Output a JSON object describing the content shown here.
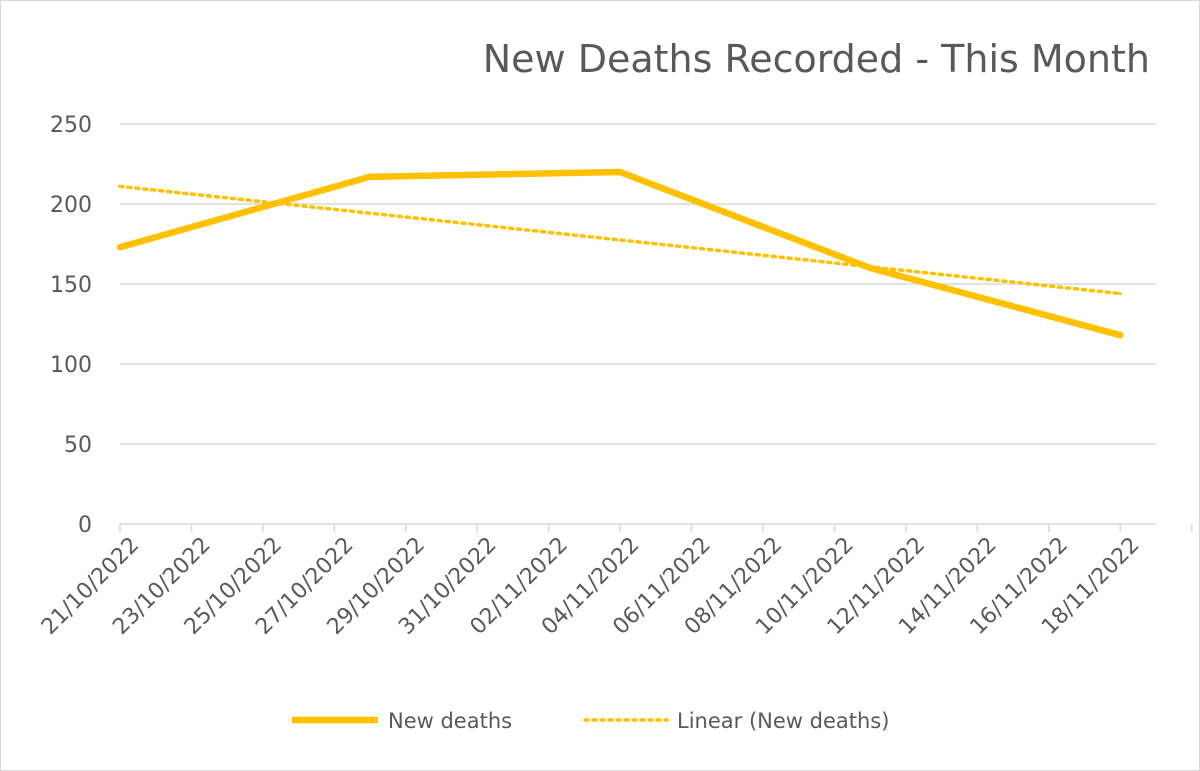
{
  "chart_data": {
    "type": "line",
    "title": "New Deaths Recorded - This Month",
    "xlabel": "",
    "ylabel": "",
    "x_tick_labels": [
      "21/10/2022",
      "23/10/2022",
      "25/10/2022",
      "27/10/2022",
      "29/10/2022",
      "31/10/2022",
      "02/11/2022",
      "04/11/2022",
      "06/11/2022",
      "08/11/2022",
      "10/11/2022",
      "12/11/2022",
      "14/11/2022",
      "16/11/2022",
      "18/11/2022"
    ],
    "y_ticks": [
      0,
      50,
      100,
      150,
      200,
      250
    ],
    "ylim": [
      0,
      250
    ],
    "xlim": [
      "21/10/2022",
      "19/11/2022"
    ],
    "grid": true,
    "legend_position": "bottom",
    "colors": {
      "series": "#FFC000",
      "axis": "#d9d9d9",
      "text": "#595959"
    },
    "series": [
      {
        "name": "New deaths",
        "style": "solid",
        "points": [
          {
            "x": "21/10/2022",
            "y": 173
          },
          {
            "x": "28/10/2022",
            "y": 217
          },
          {
            "x": "04/11/2022",
            "y": 220
          },
          {
            "x": "11/11/2022",
            "y": 160
          },
          {
            "x": "18/11/2022",
            "y": 118
          }
        ]
      },
      {
        "name": "Linear (New deaths)",
        "style": "dotted",
        "points": [
          {
            "x": "21/10/2022",
            "y": 211
          },
          {
            "x": "18/11/2022",
            "y": 144
          }
        ]
      }
    ]
  }
}
